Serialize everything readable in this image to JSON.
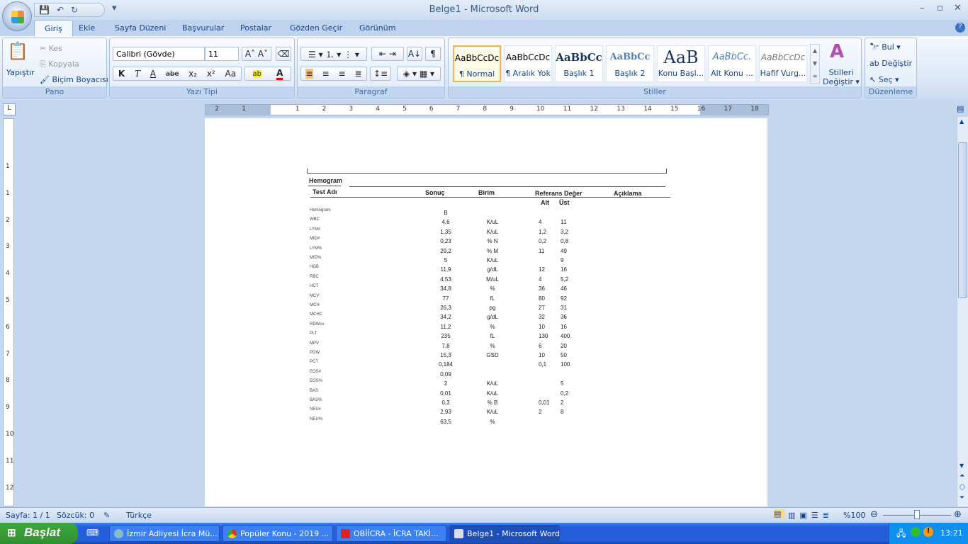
{
  "window": {
    "title": "Belge1 - Microsoft Word"
  },
  "qat": {
    "save": "save-icon",
    "undo": "undo-icon",
    "redo": "redo-icon"
  },
  "tabs": [
    "Giriş",
    "Ekle",
    "Sayfa Düzeni",
    "Başvurular",
    "Postalar",
    "Gözden Geçir",
    "Görünüm"
  ],
  "ribbon": {
    "pano": {
      "label": "Pano",
      "paste": "Yapıştır",
      "cut": "Kes",
      "copy": "Kopyala",
      "format_painter": "Biçim Boyacısı"
    },
    "font": {
      "label": "Yazı Tipi",
      "font_name": "Calibri (Gövde)",
      "font_size": "11",
      "bold": "K",
      "italic": "T",
      "underline": "A",
      "strike": "abe",
      "sub": "x₂",
      "sup": "x²",
      "case": "Aa"
    },
    "paragraph": {
      "label": "Paragraf",
      "pilcrow": "¶"
    },
    "styles": {
      "label": "Stiller",
      "items": [
        {
          "sample": "AaBbCcDc",
          "name": "¶ Normal"
        },
        {
          "sample": "AaBbCcDc",
          "name": "¶ Aralık Yok"
        },
        {
          "sample": "AaBbCc",
          "name": "Başlık 1"
        },
        {
          "sample": "AaBbCc",
          "name": "Başlık 2"
        },
        {
          "sample": "AaB",
          "name": "Konu Başl..."
        },
        {
          "sample": "AaBbCc.",
          "name": "Alt Konu ..."
        },
        {
          "sample": "AaBbCcDc",
          "name": "Hafif Vurg..."
        }
      ],
      "change_styles_1": "Stilleri",
      "change_styles_2": "Değiştir"
    },
    "editing": {
      "label": "Düzenleme",
      "find": "Bul",
      "replace": "Değiştir",
      "select": "Seç"
    }
  },
  "ruler": {
    "h": [
      "2",
      "1",
      "1",
      "2",
      "3",
      "4",
      "5",
      "6",
      "7",
      "8",
      "9",
      "10",
      "11",
      "12",
      "13",
      "14",
      "15",
      "16",
      "17",
      "18"
    ],
    "v": [
      "1",
      "1",
      "2",
      "3",
      "4",
      "5",
      "6",
      "7",
      "8",
      "9",
      "10",
      "11",
      "12"
    ]
  },
  "document": {
    "section": "Hemogram",
    "headers": {
      "test": "Test Adı",
      "result": "Sonuç",
      "unit": "Birim",
      "ref": "Referans Değer",
      "note": "Açıklama",
      "low": "Alt",
      "high": "Üst"
    },
    "rows": [
      [
        "Hemogram",
        "B",
        "",
        "",
        ""
      ],
      [
        "WBC",
        "4,6",
        "K/uL",
        "4",
        "11"
      ],
      [
        "LYM#",
        "1,35",
        "K/uL",
        "1,2",
        "3,2"
      ],
      [
        "MID#",
        "0,23",
        "% N",
        "0,2",
        "0,8"
      ],
      [
        "LYM%",
        "29,2",
        "% M",
        "11",
        "49"
      ],
      [
        "MID%",
        "5",
        "K/uL",
        "",
        "9"
      ],
      [
        "HGB",
        "11,9",
        "g/dL",
        "12",
        "16"
      ],
      [
        "RBC",
        "4,53",
        "M/uL",
        "4",
        "5,2"
      ],
      [
        "HCT",
        "34,8",
        "%",
        "36",
        "46"
      ],
      [
        "MCV",
        "77",
        "fL",
        "80",
        "92"
      ],
      [
        "MCH",
        "26,3",
        "pg",
        "27",
        "31"
      ],
      [
        "MCHC",
        "34,2",
        "g/dL",
        "32",
        "36"
      ],
      [
        "RDWcv",
        "11,2",
        "%",
        "10",
        "16"
      ],
      [
        "PLT",
        "235",
        "fL",
        "130",
        "400"
      ],
      [
        "MPV",
        "7,8",
        "%",
        "6",
        "20"
      ],
      [
        "PDW",
        "15,3",
        "GSD",
        "10",
        "50"
      ],
      [
        "PCT",
        "0,184",
        "",
        "0,1",
        "100"
      ],
      [
        "EOS#",
        "0,09",
        "",
        "",
        ""
      ],
      [
        "EOS%",
        "2",
        "K/uL",
        "",
        "5"
      ],
      [
        "BAS",
        "0,01",
        "K/uL",
        "",
        "0,2"
      ],
      [
        "BAS%",
        "0,3",
        "% B",
        "0,01",
        "2"
      ],
      [
        "NEU#",
        "2,93",
        "K/uL",
        "2",
        "8"
      ],
      [
        "NEU%",
        "63,5",
        "%",
        "",
        ""
      ]
    ]
  },
  "status": {
    "page": "Sayfa: 1 / 1",
    "words": "Sözcük: 0",
    "language": "Türkçe",
    "zoom": "%100",
    "zoom_percent": 100
  },
  "taskbar": {
    "start": "Başlat",
    "tasks": [
      "İzmir Adliyesi İcra Mü...",
      "Popüler Konu - 2019 ...",
      "OBİİCRA - İCRA TAKİ...",
      "Belge1 - Microsoft Word"
    ],
    "clock": "13:21"
  }
}
